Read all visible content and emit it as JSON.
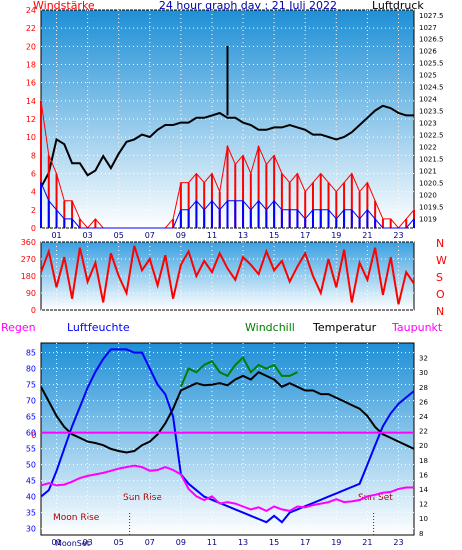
{
  "header": {
    "left_label": "Windstärke",
    "title": "24 hour graph day : 21 Juli 2022",
    "right_label": "Luftdruck"
  },
  "colors": {
    "blue": "#0000ff",
    "red": "#ff0000",
    "green": "#008000",
    "black": "#000000",
    "magenta": "#ff00ff",
    "sky_top": "#1e8fd6",
    "sky_bottom": "#ffffff"
  },
  "x_hours": [
    "01",
    "03",
    "05",
    "07",
    "09",
    "11",
    "13",
    "15",
    "17",
    "19",
    "21",
    "23"
  ],
  "directions": [
    "N",
    "W",
    "S",
    "O",
    "N"
  ],
  "legend": {
    "regen": "Regen",
    "luftfeuchte": "Luftfeuchte",
    "windchill": "Windchill",
    "temperatur": "Temperatur",
    "taupunkt": "Taupunkt"
  },
  "annotations": {
    "sun_rise": "Sun Rise",
    "sun_set": "Sun Set",
    "moon_rise": "Moon Rise",
    "moon_set": "MoonSet",
    "zero_label": "0"
  },
  "chart_data": [
    {
      "type": "line",
      "panel": "wind_pressure",
      "x_range": [
        0,
        24
      ],
      "left_axis": {
        "ticks": [
          0,
          2,
          4,
          6,
          8,
          10,
          12,
          14,
          16,
          18,
          20,
          22,
          24
        ],
        "ylim": [
          0,
          24
        ]
      },
      "right_axis": {
        "ticks": [
          1019,
          1019.5,
          1020,
          1020.5,
          1021,
          1021.5,
          1022,
          1022.5,
          1023,
          1023.5,
          1024,
          1024.5,
          1025,
          1025.5,
          1026,
          1026.5,
          1027,
          1027.5
        ],
        "tick_labels": [
          "1019",
          "1019.5",
          "1020",
          "1020.5",
          "1021",
          "1021.5",
          "1022",
          "1022.5",
          "1023",
          "1023.5",
          "1024",
          "1024.5",
          "1025",
          "1025.5",
          "1026",
          "1026.5",
          "1027",
          "1027.5"
        ],
        "ylim": [
          1018.6,
          1027.7
        ]
      },
      "series": [
        {
          "axis": "right",
          "color": "#000000",
          "x": [
            0,
            0.5,
            1,
            1.5,
            2,
            2.5,
            3,
            3.5,
            4,
            4.5,
            5,
            5.5,
            6,
            6.5,
            7,
            7.5,
            8,
            8.5,
            9,
            9.5,
            10,
            10.5,
            11,
            11.5,
            12,
            12.5,
            13,
            13.5,
            14,
            14.5,
            15,
            15.5,
            16,
            16.5,
            17,
            17.5,
            18,
            18.5,
            19,
            19.5,
            20,
            20.5,
            21,
            21.5,
            22,
            22.5,
            23,
            23.5,
            24
          ],
          "y": [
            1020.3,
            1020.9,
            1022.3,
            1022.1,
            1021.3,
            1021.3,
            1020.8,
            1021.0,
            1021.6,
            1021.1,
            1021.7,
            1022.2,
            1022.3,
            1022.5,
            1022.4,
            1022.7,
            1022.9,
            1022.9,
            1023.0,
            1023.0,
            1023.2,
            1023.2,
            1023.3,
            1023.4,
            1023.2,
            1023.2,
            1023.0,
            1022.9,
            1022.7,
            1022.7,
            1022.8,
            1022.8,
            1022.9,
            1022.8,
            1022.7,
            1022.5,
            1022.5,
            1022.4,
            1022.3,
            1022.4,
            1022.6,
            1022.9,
            1023.2,
            1023.5,
            1023.7,
            1023.6,
            1023.4,
            1023.3,
            1023.3
          ],
          "spikes": [
            {
              "x": 12.0,
              "y": 1026.2
            }
          ]
        },
        {
          "axis": "left",
          "color": "#ff0000",
          "name": "",
          "x": [
            0,
            0.5,
            1,
            1.5,
            2,
            2.5,
            3,
            3.5,
            4,
            4.5,
            5,
            5.5,
            6,
            6.5,
            7,
            7.5,
            8,
            8.5,
            9,
            9.5,
            10,
            10.5,
            11,
            11.5,
            12,
            12.5,
            13,
            13.5,
            14,
            14.5,
            15,
            15.5,
            16,
            16.5,
            17,
            17.5,
            18,
            18.5,
            19,
            19.5,
            20,
            20.5,
            21,
            21.5,
            22,
            22.5,
            23,
            23.5,
            24
          ],
          "y": [
            14,
            8,
            6,
            3,
            3,
            1,
            0,
            1,
            0,
            0,
            0,
            0,
            0,
            0,
            0,
            0,
            0,
            1,
            5,
            5,
            6,
            5,
            6,
            4,
            9,
            7,
            8,
            6,
            9,
            7,
            8,
            6,
            5,
            6,
            4,
            5,
            6,
            5,
            4,
            5,
            6,
            4,
            5,
            3,
            1,
            1,
            0,
            1,
            2
          ]
        },
        {
          "axis": "left",
          "color": "#0000ff",
          "name": "",
          "x": [
            0,
            0.5,
            1,
            1.5,
            2,
            2.5,
            3,
            3.5,
            4,
            4.5,
            5,
            5.5,
            6,
            6.5,
            7,
            7.5,
            8,
            8.5,
            9,
            9.5,
            10,
            10.5,
            11,
            11.5,
            12,
            12.5,
            13,
            13.5,
            14,
            14.5,
            15,
            15.5,
            16,
            16.5,
            17,
            17.5,
            18,
            18.5,
            19,
            19.5,
            20,
            20.5,
            21,
            21.5,
            22,
            22.5,
            23,
            23.5,
            24
          ],
          "y": [
            5,
            3,
            2,
            1,
            1,
            0,
            0,
            0,
            0,
            0,
            0,
            0,
            0,
            0,
            0,
            0,
            0,
            0,
            2,
            2,
            3,
            2,
            3,
            2,
            3,
            3,
            3,
            2,
            3,
            2,
            3,
            2,
            2,
            2,
            1,
            2,
            2,
            2,
            1,
            2,
            2,
            1,
            2,
            1,
            0,
            0,
            0,
            0,
            1
          ]
        }
      ]
    },
    {
      "type": "line",
      "panel": "wind_direction",
      "x_range": [
        0,
        24
      ],
      "left_axis": {
        "ticks": [
          0,
          90,
          180,
          270,
          360
        ],
        "ylim": [
          0,
          360
        ]
      },
      "series": [
        {
          "color": "#ff0000",
          "x": [
            0,
            0.5,
            1,
            1.5,
            2,
            2.5,
            3,
            3.5,
            4,
            4.5,
            5,
            5.5,
            6,
            6.5,
            7,
            7.5,
            8,
            8.5,
            9,
            9.5,
            10,
            10.5,
            11,
            11.5,
            12,
            12.5,
            13,
            13.5,
            14,
            14.5,
            15,
            15.5,
            16,
            16.5,
            17,
            17.5,
            18,
            18.5,
            19,
            19.5,
            20,
            20.5,
            21,
            21.5,
            22,
            22.5,
            23,
            23.5,
            24
          ],
          "y": [
            200,
            310,
            120,
            280,
            60,
            330,
            150,
            250,
            40,
            300,
            180,
            90,
            340,
            210,
            270,
            130,
            290,
            60,
            240,
            310,
            180,
            260,
            200,
            300,
            220,
            160,
            280,
            240,
            190,
            310,
            210,
            260,
            150,
            230,
            300,
            180,
            90,
            270,
            120,
            320,
            40,
            250,
            160,
            330,
            80,
            280,
            30,
            200,
            140
          ]
        }
      ]
    },
    {
      "type": "line",
      "panel": "temperature_humidity",
      "x_range": [
        0,
        24
      ],
      "left_axis": {
        "ticks": [
          30,
          35,
          40,
          45,
          50,
          55,
          60,
          65,
          70,
          75,
          80,
          85
        ],
        "ylim": [
          28,
          88
        ]
      },
      "right_axis": {
        "ticks": [
          8,
          10,
          12,
          14,
          16,
          18,
          20,
          22,
          24,
          26,
          28,
          30,
          32
        ],
        "ylim": [
          7.7,
          34
        ]
      },
      "series": [
        {
          "axis": "left",
          "color": "#0000ff",
          "x": [
            0,
            0.5,
            1,
            1.5,
            2,
            2.5,
            3,
            3.5,
            4,
            4.5,
            5,
            5.5,
            6,
            6.5,
            7,
            7.5,
            8,
            8.5,
            9,
            9.5,
            10,
            10.5,
            11,
            11.5,
            12,
            12.5,
            13,
            13.5,
            14,
            14.5,
            15,
            15.5,
            16,
            16.5,
            17,
            17.5,
            18,
            18.5,
            19,
            19.5,
            20,
            20.5,
            21,
            21.5,
            22,
            22.5,
            23,
            23.5,
            24
          ],
          "y": [
            40,
            42,
            48,
            55,
            62,
            68,
            74,
            79,
            83,
            86,
            86,
            86,
            85,
            85,
            80,
            75,
            72,
            65,
            47,
            44,
            42,
            40,
            39,
            38,
            37,
            36,
            35,
            34,
            33,
            32,
            34,
            32,
            35,
            36,
            37,
            38,
            39,
            40,
            41,
            42,
            43,
            44,
            50,
            56,
            62,
            66,
            69,
            71,
            73
          ]
        },
        {
          "axis": "right",
          "color": "#000000",
          "x": [
            0,
            0.5,
            1,
            1.5,
            2,
            2.5,
            3,
            3.5,
            4,
            4.5,
            5,
            5.5,
            6,
            6.5,
            7,
            7.5,
            8,
            8.5,
            9,
            9.5,
            10,
            10.5,
            11,
            11.5,
            12,
            12.5,
            13,
            13.5,
            14,
            14.5,
            15,
            15.5,
            16,
            16.5,
            17,
            17.5,
            18,
            18.5,
            19,
            19.5,
            20,
            20.5,
            21,
            21.5,
            22,
            22.5,
            23,
            23.5,
            24
          ],
          "y": [
            28,
            26,
            24,
            22.5,
            21.5,
            21,
            20.5,
            20.3,
            20,
            19.5,
            19.2,
            19,
            19.2,
            20,
            20.5,
            21.5,
            23,
            25,
            27.5,
            28,
            28.5,
            28.2,
            28.3,
            28.5,
            28.2,
            29,
            29.5,
            29,
            30,
            29.5,
            29,
            28,
            28.5,
            28,
            27.5,
            27.5,
            27,
            27,
            26.5,
            26,
            25.5,
            25,
            24,
            22.5,
            21.5,
            21,
            20.5,
            20,
            19.5
          ]
        },
        {
          "axis": "right",
          "color": "#008000",
          "x": [
            9,
            9.5,
            10,
            10.5,
            11,
            11.5,
            12,
            12.5,
            13,
            13.5,
            14,
            14.5,
            15,
            15.5,
            16,
            16.5
          ],
          "y": [
            28,
            30.5,
            30,
            31,
            31.5,
            30,
            29.5,
            31,
            32,
            30,
            31,
            30.5,
            31,
            29.5,
            29.5,
            30
          ]
        },
        {
          "axis": "right",
          "color": "#ff00ff",
          "x": [
            0,
            0.5,
            1,
            1.5,
            2,
            2.5,
            3,
            3.5,
            4,
            4.5,
            5,
            5.5,
            6,
            6.5,
            7,
            7.5,
            8,
            8.5,
            9,
            9.5,
            10,
            10.5,
            11,
            11.5,
            12,
            12.5,
            13,
            13.5,
            14,
            14.5,
            15,
            15.5,
            16,
            16.5,
            17,
            17.5,
            18,
            18.5,
            19,
            19.5,
            20,
            20.5,
            21,
            21.5,
            22,
            22.5,
            23,
            23.5,
            24
          ],
          "y": [
            14.5,
            14.8,
            14.5,
            14.6,
            15,
            15.5,
            15.8,
            16,
            16.2,
            16.5,
            16.8,
            17,
            17.2,
            17,
            16.5,
            16.6,
            17,
            16.6,
            16,
            14,
            13,
            12.5,
            13,
            12,
            12.2,
            12,
            11.6,
            11.2,
            11.5,
            11,
            11.6,
            11.2,
            11,
            11.6,
            11.5,
            11.8,
            12,
            12.2,
            12.6,
            12.2,
            12.3,
            12.5,
            13,
            13.2,
            13.5,
            13.6,
            14,
            14.2,
            14.2
          ]
        }
      ],
      "zero_line_y": 60
    }
  ]
}
